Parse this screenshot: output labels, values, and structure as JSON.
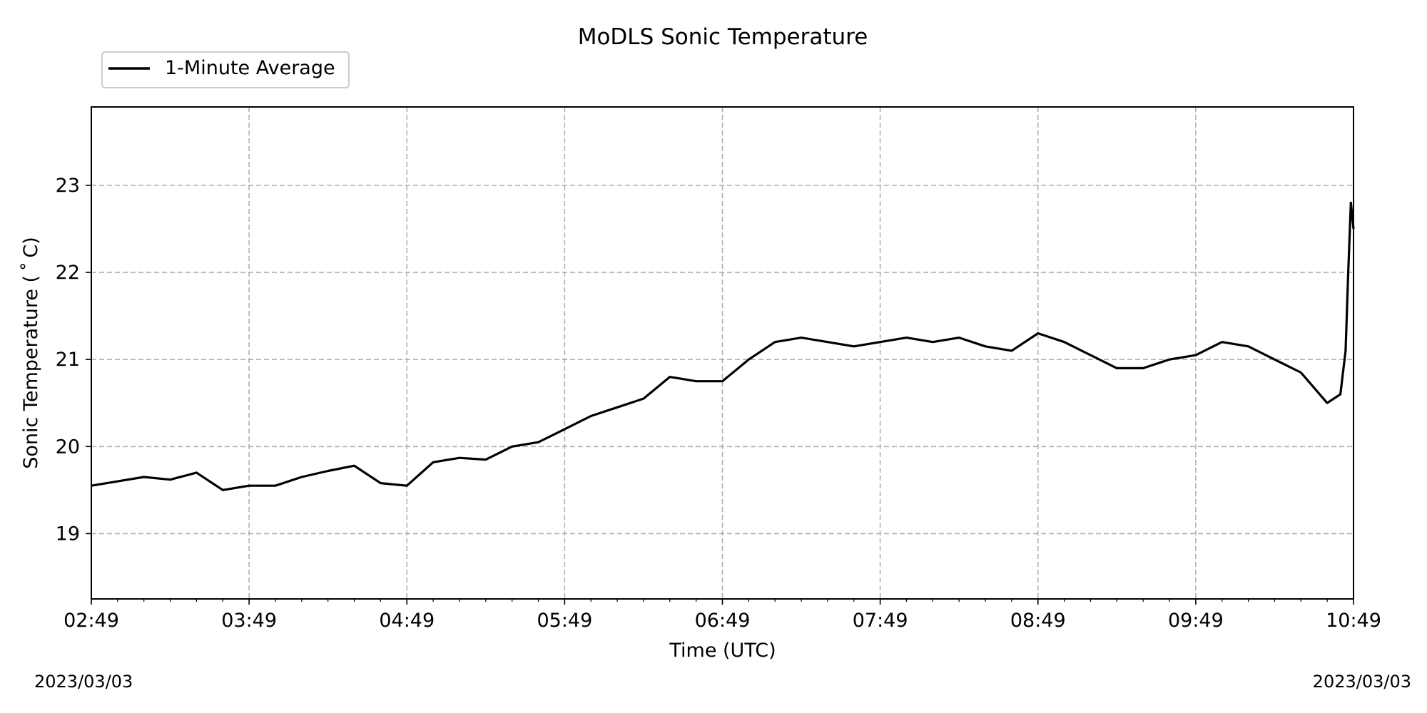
{
  "chart_data": {
    "type": "line",
    "title": "MoDLS Sonic Temperature",
    "xlabel": "Time (UTC)",
    "ylabel": "Sonic Temperature ($^\\circ$C)",
    "ylabel_display": "Sonic Temperature ( ˚ C)",
    "xlim_minutes": [
      0,
      480
    ],
    "ylim": [
      18.25,
      23.9
    ],
    "x_ticks": [
      "02:49",
      "03:49",
      "04:49",
      "05:49",
      "06:49",
      "07:49",
      "08:49",
      "09:49",
      "10:49"
    ],
    "y_ticks": [
      19,
      20,
      21,
      22,
      23
    ],
    "grid": true,
    "legend_placement": "upper-left-outside",
    "series": [
      {
        "name": "1-Minute Average",
        "color": "#000000",
        "x_time": [
          "02:49",
          "02:59",
          "03:09",
          "03:19",
          "03:29",
          "03:39",
          "03:49",
          "03:59",
          "04:09",
          "04:19",
          "04:29",
          "04:39",
          "04:49",
          "04:59",
          "05:09",
          "05:19",
          "05:29",
          "05:39",
          "05:49",
          "05:59",
          "06:09",
          "06:19",
          "06:29",
          "06:39",
          "06:49",
          "06:59",
          "07:09",
          "07:19",
          "07:29",
          "07:39",
          "07:49",
          "07:59",
          "08:09",
          "08:19",
          "08:29",
          "08:39",
          "08:49",
          "08:59",
          "09:09",
          "09:19",
          "09:29",
          "09:39",
          "09:49",
          "09:59",
          "10:09",
          "10:19",
          "10:29",
          "10:39",
          "10:44",
          "10:46",
          "10:47",
          "10:48",
          "10:49"
        ],
        "y": [
          19.55,
          19.6,
          19.65,
          19.62,
          19.7,
          19.5,
          19.55,
          19.55,
          19.65,
          19.72,
          19.78,
          19.58,
          19.55,
          19.82,
          19.87,
          19.85,
          20.0,
          20.05,
          20.2,
          20.35,
          20.45,
          20.55,
          20.8,
          20.75,
          20.75,
          21.0,
          21.2,
          21.25,
          21.2,
          21.15,
          21.2,
          21.25,
          21.2,
          21.25,
          21.15,
          21.1,
          21.3,
          21.2,
          21.05,
          20.9,
          20.9,
          21.0,
          21.05,
          21.2,
          21.15,
          21.0,
          20.85,
          20.5,
          20.6,
          21.1,
          22.0,
          22.8,
          22.5
        ]
      }
    ],
    "bottom_left_date": "2023/03/03",
    "bottom_right_date": "2023/03/03"
  }
}
